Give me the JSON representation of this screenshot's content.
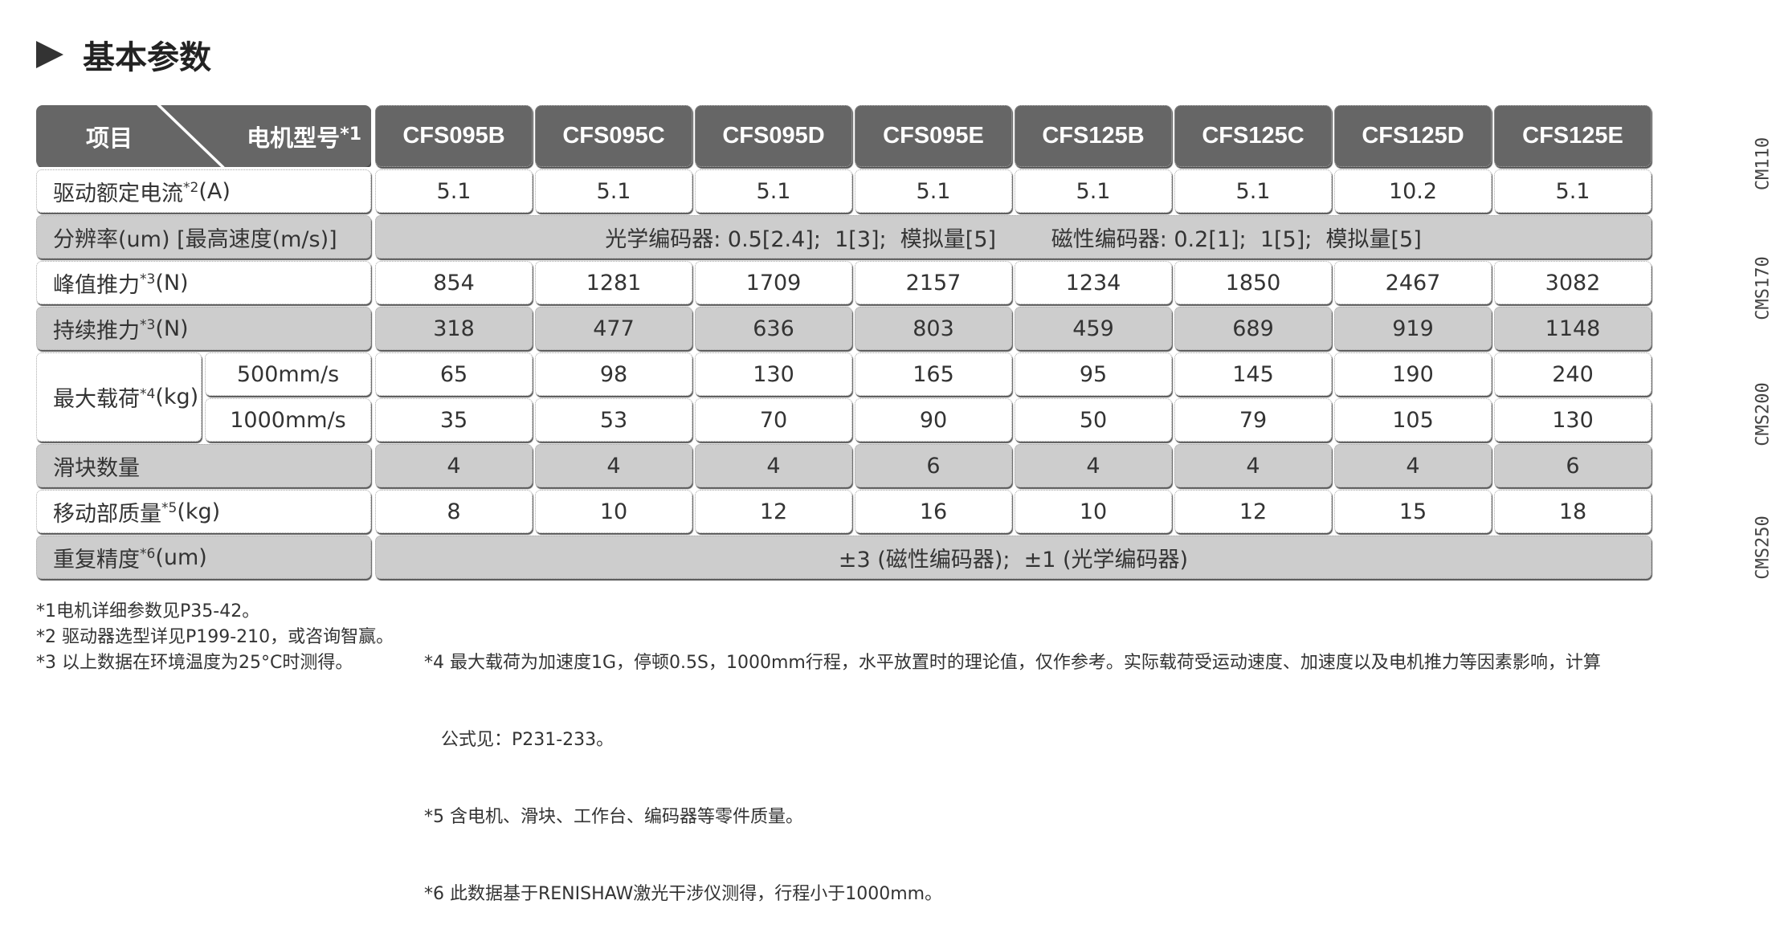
{
  "title": "基本参数",
  "header": {
    "item": "项目",
    "model": "电机型号",
    "model_note": "*1",
    "models": [
      "CFS095B",
      "CFS095C",
      "CFS095D",
      "CFS095E",
      "CFS125B",
      "CFS125C",
      "CFS125D",
      "CFS125E"
    ]
  },
  "rows": [
    {
      "label": "驱动额定电流",
      "note": "*2",
      "unit": "(A)",
      "values": [
        "5.1",
        "5.1",
        "5.1",
        "5.1",
        "5.1",
        "5.1",
        "10.2",
        "5.1"
      ]
    },
    {
      "label": "分辨率(um) [最高速度(m/s)]",
      "note": "",
      "unit": "",
      "span": "光学编码器: 0.5[2.4];  1[3];  模拟量[5]        磁性编码器: 0.2[1];  1[5];  模拟量[5]"
    },
    {
      "label": "峰值推力",
      "note": "*3",
      "unit": "(N)",
      "values": [
        "854",
        "1281",
        "1709",
        "2157",
        "1234",
        "1850",
        "2467",
        "3082"
      ]
    },
    {
      "label": "持续推力",
      "note": "*3",
      "unit": "(N)",
      "values": [
        "318",
        "477",
        "636",
        "803",
        "459",
        "689",
        "919",
        "1148"
      ]
    },
    {
      "label": "最大载荷",
      "note": "*4",
      "unit": "(kg)",
      "sub": [
        {
          "label": "500mm/s",
          "values": [
            "65",
            "98",
            "130",
            "165",
            "95",
            "145",
            "190",
            "240"
          ]
        },
        {
          "label": "1000mm/s",
          "values": [
            "35",
            "53",
            "70",
            "90",
            "50",
            "79",
            "105",
            "130"
          ]
        }
      ]
    },
    {
      "label": "滑块数量",
      "note": "",
      "unit": "",
      "values": [
        "4",
        "4",
        "4",
        "6",
        "4",
        "4",
        "4",
        "6"
      ]
    },
    {
      "label": "移动部质量",
      "note": "*5",
      "unit": "(kg)",
      "values": [
        "8",
        "10",
        "12",
        "16",
        "10",
        "12",
        "15",
        "18"
      ]
    },
    {
      "label": "重复精度",
      "note": "*6",
      "unit": "(um)",
      "span": "±3 (磁性编码器);  ±1 (光学编码器)"
    }
  ],
  "side_labels": [
    "CM110",
    "CMS170",
    "CMS200",
    "CMS250"
  ],
  "footnotes_left": [
    "*1电机详细参数见P35-42。",
    "*2 驱动器选型详见P199-210，或咨询智赢。",
    "*3 以上数据在环境温度为25°C时测得。"
  ],
  "footnotes_right": [
    "*4 最大载荷为加速度1G，停顿0.5S，1000mm行程，水平放置时的理论值，仅作参考。实际载荷受运动速度、加速度以及电机推力等因素影响，计算",
    "   公式见：P231-233。",
    "*5 含电机、滑块、工作台、编码器等零件质量。",
    "*6 此数据基于RENISHAW激光干涉仪测得，行程小于1000mm。"
  ]
}
